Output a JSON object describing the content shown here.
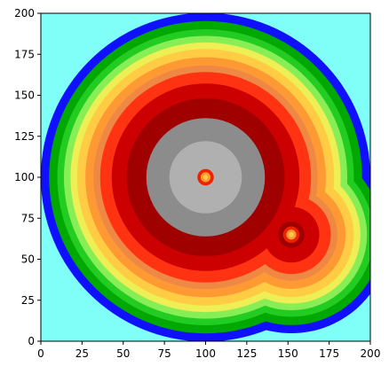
{
  "chart_data": {
    "type": "heatmap",
    "xlim": [
      0,
      200
    ],
    "ylim": [
      0,
      200
    ],
    "xticks": [
      0,
      25,
      50,
      75,
      100,
      125,
      150,
      175,
      200
    ],
    "yticks": [
      0,
      25,
      50,
      75,
      100,
      125,
      150,
      175,
      200
    ],
    "background": "#80fff8",
    "sources": [
      {
        "x": 100,
        "y": 100,
        "offset": 0
      },
      {
        "x": 152,
        "y": 65,
        "offset": 40
      }
    ],
    "bands": [
      {
        "radius": 100,
        "color": "#1010ff"
      },
      {
        "radius": 95,
        "color": "#00a800"
      },
      {
        "radius": 90,
        "color": "#22cc22"
      },
      {
        "radius": 86,
        "color": "#88ee55"
      },
      {
        "radius": 82,
        "color": "#eeee55"
      },
      {
        "radius": 78,
        "color": "#ffcc44"
      },
      {
        "radius": 73,
        "color": "#ff9933"
      },
      {
        "radius": 68,
        "color": "#ee8844"
      },
      {
        "radius": 64,
        "color": "#ff3311"
      },
      {
        "radius": 57,
        "color": "#cc0000"
      },
      {
        "radius": 48,
        "color": "#a00000"
      },
      {
        "radius": 36,
        "color": "#8c8c8c"
      },
      {
        "radius": 22,
        "color": "#b0b0b0"
      }
    ],
    "center_rings": [
      {
        "radius": 5,
        "color": "#ee2200"
      },
      {
        "radius": 3,
        "color": "#ff9933"
      },
      {
        "radius": 1.5,
        "color": "#ffcc44"
      }
    ]
  }
}
